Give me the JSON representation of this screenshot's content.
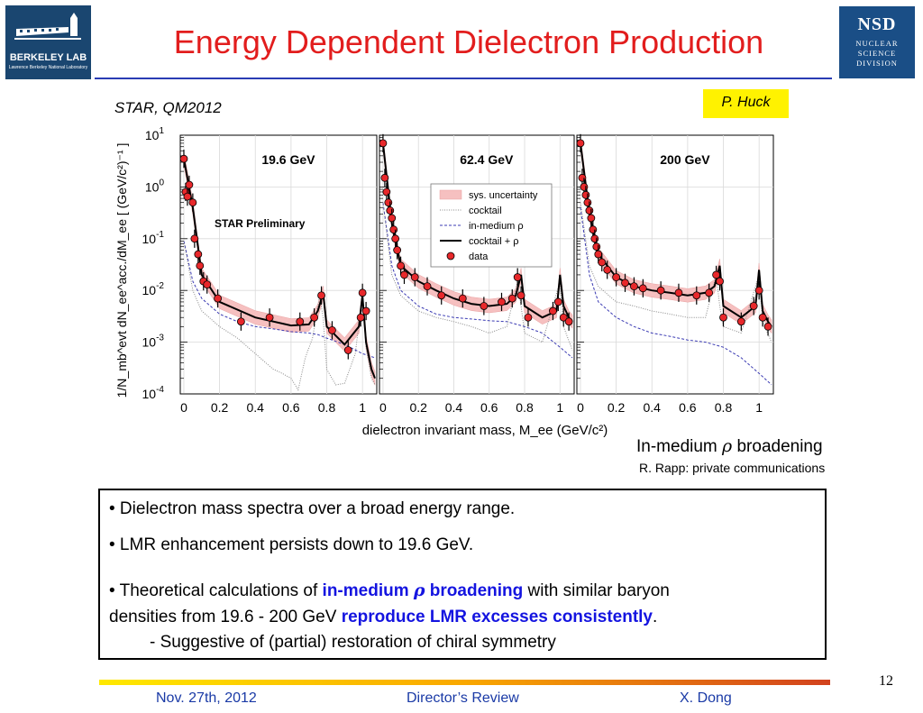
{
  "header": {
    "title": "Energy Dependent Dielectron Production",
    "conference": "STAR, QM2012",
    "author": "P. Huck",
    "logo_left": {
      "name": "BERKELEY LAB",
      "sub": "Lawrence Berkeley National Laboratory",
      "icon": "berkeley-lab-logo-icon"
    },
    "logo_right": {
      "name": "NSD",
      "lines": [
        "NUCLEAR",
        "SCIENCE",
        "DIVISION"
      ],
      "icon": "nsd-logo-icon"
    }
  },
  "chart_data": {
    "type": "scatter",
    "ylabel": "1/N_mb^evt dN_ee^acc./dM_ee [ (GeV/c²)⁻¹ ]",
    "xlabel": "dielectron invariant mass, M_ee (GeV/c²)",
    "y_scale": "log",
    "ylim": [
      0.0001,
      10
    ],
    "y_ticks": [
      "10^1",
      "10^0",
      "10^-1",
      "10^-2",
      "10^-3",
      "10^-4"
    ],
    "x_ticks": [
      "0",
      "0.2",
      "0.4",
      "0.6",
      "0.8",
      "1"
    ],
    "preliminary_label": "STAR Preliminary",
    "legend": {
      "placement": "top-center of middle panel",
      "entries": [
        "sys. uncertainty",
        "cocktail",
        "in-medium ρ",
        "cocktail + ρ",
        "data"
      ]
    },
    "panels": [
      {
        "label": "19.6 GeV",
        "xlim": [
          -0.02,
          1.08
        ],
        "data": [
          [
            0.0,
            3.5
          ],
          [
            0.01,
            0.8
          ],
          [
            0.02,
            0.65
          ],
          [
            0.03,
            1.1
          ],
          [
            0.05,
            0.5
          ],
          [
            0.06,
            0.1
          ],
          [
            0.08,
            0.05
          ],
          [
            0.09,
            0.03
          ],
          [
            0.11,
            0.015
          ],
          [
            0.13,
            0.013
          ],
          [
            0.19,
            0.007
          ],
          [
            0.32,
            0.0025
          ],
          [
            0.48,
            0.003
          ],
          [
            0.65,
            0.0025
          ],
          [
            0.73,
            0.003
          ],
          [
            0.77,
            0.008
          ],
          [
            0.83,
            0.0017
          ],
          [
            0.92,
            0.0007
          ],
          [
            0.99,
            0.003
          ],
          [
            1.0,
            0.009
          ],
          [
            1.02,
            0.004
          ]
        ],
        "cocktail_plus_rho": [
          [
            0.0,
            3.5
          ],
          [
            0.05,
            0.4
          ],
          [
            0.1,
            0.02
          ],
          [
            0.2,
            0.006
          ],
          [
            0.4,
            0.003
          ],
          [
            0.6,
            0.0021
          ],
          [
            0.7,
            0.0022
          ],
          [
            0.75,
            0.004
          ],
          [
            0.78,
            0.009
          ],
          [
            0.8,
            0.002
          ],
          [
            0.9,
            0.0009
          ],
          [
            0.98,
            0.002
          ],
          [
            1.0,
            0.008
          ],
          [
            1.02,
            0.001
          ],
          [
            1.05,
            0.0003
          ],
          [
            1.07,
            0.0002
          ]
        ],
        "cocktail": [
          [
            0.0,
            0.09
          ],
          [
            0.05,
            0.01
          ],
          [
            0.1,
            0.004
          ],
          [
            0.2,
            0.002
          ],
          [
            0.3,
            0.0012
          ],
          [
            0.4,
            0.0006
          ],
          [
            0.5,
            0.0003
          ],
          [
            0.55,
            0.00025
          ],
          [
            0.6,
            0.0002
          ],
          [
            0.64,
            0.00012
          ],
          [
            0.68,
            0.0005
          ],
          [
            0.72,
            0.0012
          ],
          [
            0.76,
            0.008
          ],
          [
            0.78,
            0.003
          ],
          [
            0.8,
            0.0003
          ],
          [
            0.85,
            0.00015
          ],
          [
            0.9,
            0.00016
          ],
          [
            0.96,
            0.0006
          ],
          [
            1.0,
            0.009
          ],
          [
            1.02,
            0.0008
          ],
          [
            1.05,
            0.0002
          ],
          [
            1.07,
            0.00015
          ]
        ],
        "in_medium_rho": [
          [
            0.0,
            0.09
          ],
          [
            0.05,
            0.015
          ],
          [
            0.1,
            0.007
          ],
          [
            0.2,
            0.0035
          ],
          [
            0.3,
            0.0025
          ],
          [
            0.4,
            0.002
          ],
          [
            0.5,
            0.0018
          ],
          [
            0.6,
            0.0016
          ],
          [
            0.7,
            0.0015
          ],
          [
            0.75,
            0.0014
          ],
          [
            0.8,
            0.0012
          ],
          [
            0.9,
            0.0009
          ],
          [
            1.0,
            0.0006
          ],
          [
            1.07,
            0.0005
          ]
        ]
      },
      {
        "label": "62.4 GeV",
        "xlim": [
          -0.02,
          1.08
        ],
        "data": [
          [
            0.0,
            7
          ],
          [
            0.01,
            1.5
          ],
          [
            0.02,
            0.8
          ],
          [
            0.03,
            0.5
          ],
          [
            0.04,
            0.35
          ],
          [
            0.05,
            0.25
          ],
          [
            0.06,
            0.15
          ],
          [
            0.07,
            0.1
          ],
          [
            0.08,
            0.06
          ],
          [
            0.1,
            0.03
          ],
          [
            0.12,
            0.02
          ],
          [
            0.18,
            0.018
          ],
          [
            0.25,
            0.012
          ],
          [
            0.33,
            0.008
          ],
          [
            0.45,
            0.007
          ],
          [
            0.57,
            0.005
          ],
          [
            0.67,
            0.006
          ],
          [
            0.73,
            0.007
          ],
          [
            0.76,
            0.018
          ],
          [
            0.78,
            0.008
          ],
          [
            0.82,
            0.003
          ],
          [
            0.96,
            0.004
          ],
          [
            0.99,
            0.006
          ],
          [
            1.02,
            0.003
          ],
          [
            1.05,
            0.0025
          ]
        ],
        "cocktail_plus_rho": [
          [
            0.0,
            7
          ],
          [
            0.05,
            0.2
          ],
          [
            0.1,
            0.03
          ],
          [
            0.2,
            0.015
          ],
          [
            0.3,
            0.01
          ],
          [
            0.4,
            0.007
          ],
          [
            0.5,
            0.0055
          ],
          [
            0.6,
            0.005
          ],
          [
            0.7,
            0.0055
          ],
          [
            0.75,
            0.008
          ],
          [
            0.78,
            0.02
          ],
          [
            0.8,
            0.005
          ],
          [
            0.9,
            0.003
          ],
          [
            0.98,
            0.004
          ],
          [
            1.0,
            0.02
          ],
          [
            1.02,
            0.005
          ],
          [
            1.05,
            0.003
          ],
          [
            1.07,
            0.0025
          ]
        ],
        "cocktail": [
          [
            0.0,
            0.5
          ],
          [
            0.05,
            0.02
          ],
          [
            0.1,
            0.008
          ],
          [
            0.2,
            0.004
          ],
          [
            0.3,
            0.003
          ],
          [
            0.4,
            0.0025
          ],
          [
            0.5,
            0.002
          ],
          [
            0.6,
            0.0015
          ],
          [
            0.7,
            0.002
          ],
          [
            0.76,
            0.015
          ],
          [
            0.78,
            0.005
          ],
          [
            0.8,
            0.0015
          ],
          [
            0.9,
            0.001
          ],
          [
            1.0,
            0.015
          ],
          [
            1.02,
            0.002
          ],
          [
            1.07,
            0.0007
          ]
        ],
        "in_medium_rho": [
          [
            0.0,
            0.5
          ],
          [
            0.05,
            0.03
          ],
          [
            0.1,
            0.01
          ],
          [
            0.2,
            0.005
          ],
          [
            0.3,
            0.0035
          ],
          [
            0.4,
            0.003
          ],
          [
            0.5,
            0.0028
          ],
          [
            0.6,
            0.0026
          ],
          [
            0.7,
            0.0025
          ],
          [
            0.8,
            0.002
          ],
          [
            0.9,
            0.0015
          ],
          [
            1.0,
            0.0008
          ],
          [
            1.07,
            0.0005
          ]
        ]
      },
      {
        "label": "200 GeV",
        "xlim": [
          -0.02,
          1.08
        ],
        "data": [
          [
            0.0,
            7
          ],
          [
            0.01,
            1.5
          ],
          [
            0.02,
            1.0
          ],
          [
            0.03,
            0.7
          ],
          [
            0.04,
            0.5
          ],
          [
            0.05,
            0.35
          ],
          [
            0.06,
            0.25
          ],
          [
            0.07,
            0.15
          ],
          [
            0.08,
            0.1
          ],
          [
            0.09,
            0.07
          ],
          [
            0.1,
            0.05
          ],
          [
            0.12,
            0.035
          ],
          [
            0.15,
            0.025
          ],
          [
            0.2,
            0.018
          ],
          [
            0.25,
            0.014
          ],
          [
            0.3,
            0.012
          ],
          [
            0.35,
            0.011
          ],
          [
            0.45,
            0.01
          ],
          [
            0.55,
            0.009
          ],
          [
            0.65,
            0.008
          ],
          [
            0.72,
            0.009
          ],
          [
            0.76,
            0.02
          ],
          [
            0.78,
            0.015
          ],
          [
            0.8,
            0.003
          ],
          [
            0.9,
            0.0025
          ],
          [
            0.97,
            0.005
          ],
          [
            1.0,
            0.01
          ],
          [
            1.02,
            0.003
          ],
          [
            1.05,
            0.002
          ]
        ],
        "cocktail_plus_rho": [
          [
            0.0,
            7
          ],
          [
            0.05,
            0.3
          ],
          [
            0.1,
            0.05
          ],
          [
            0.2,
            0.018
          ],
          [
            0.3,
            0.012
          ],
          [
            0.4,
            0.01
          ],
          [
            0.5,
            0.009
          ],
          [
            0.6,
            0.008
          ],
          [
            0.7,
            0.009
          ],
          [
            0.75,
            0.012
          ],
          [
            0.78,
            0.03
          ],
          [
            0.8,
            0.005
          ],
          [
            0.9,
            0.003
          ],
          [
            0.98,
            0.005
          ],
          [
            1.0,
            0.025
          ],
          [
            1.02,
            0.004
          ],
          [
            1.05,
            0.0025
          ],
          [
            1.07,
            0.002
          ]
        ],
        "cocktail": [
          [
            0.0,
            0.5
          ],
          [
            0.05,
            0.03
          ],
          [
            0.1,
            0.012
          ],
          [
            0.2,
            0.006
          ],
          [
            0.3,
            0.005
          ],
          [
            0.4,
            0.004
          ],
          [
            0.5,
            0.0035
          ],
          [
            0.6,
            0.003
          ],
          [
            0.7,
            0.003
          ],
          [
            0.76,
            0.02
          ],
          [
            0.78,
            0.005
          ],
          [
            0.8,
            0.002
          ],
          [
            0.9,
            0.0015
          ],
          [
            1.0,
            0.02
          ],
          [
            1.02,
            0.0025
          ],
          [
            1.07,
            0.001
          ]
        ],
        "in_medium_rho": [
          [
            0.0,
            0.4
          ],
          [
            0.05,
            0.02
          ],
          [
            0.1,
            0.006
          ],
          [
            0.2,
            0.003
          ],
          [
            0.3,
            0.002
          ],
          [
            0.4,
            0.0015
          ],
          [
            0.5,
            0.0013
          ],
          [
            0.6,
            0.0011
          ],
          [
            0.7,
            0.001
          ],
          [
            0.8,
            0.0008
          ],
          [
            0.9,
            0.0005
          ],
          [
            1.0,
            0.00025
          ],
          [
            1.07,
            0.00015
          ]
        ]
      }
    ],
    "colors": {
      "data": "#e8282b",
      "cocktail_plus_rho": "#000000",
      "cocktail": "#888888",
      "in_medium_rho": "#3b3bb3",
      "sys_band": "#f6c0c0"
    }
  },
  "notes": {
    "line1_pre": "In-medium ",
    "line1_symbol": "ρ",
    "line1_post": " broadening",
    "line2": "R. Rapp: private communications"
  },
  "summary": {
    "bullet1": "• Dielectron mass spectra over a broad energy range.",
    "bullet2": "• LMR enhancement persists down to 19.6 GeV.",
    "bullet3_a": "• Theoretical calculations of ",
    "bullet3_b": "in-medium ",
    "bullet3_rho": "ρ",
    "bullet3_c": " broadening",
    "bullet3_d": " with similar baryon",
    "bullet3_e": "densities from 19.6 - 200 GeV ",
    "bullet3_f": "reproduce LMR excesses consistently",
    "bullet3_g": ".",
    "bullet3_h": "- Suggestive of (partial) restoration of chiral symmetry"
  },
  "footer": {
    "date": "Nov. 27th, 2012",
    "event": "Director’s Review",
    "presenter": "X. Dong",
    "page": "12"
  }
}
